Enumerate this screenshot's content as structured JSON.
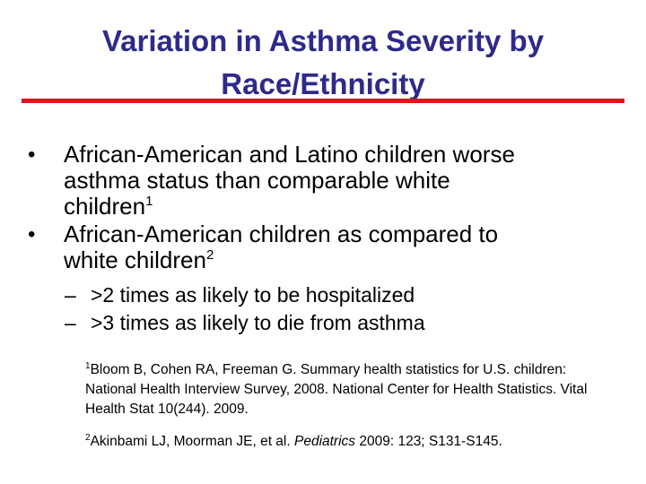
{
  "title": {
    "line1": "Variation in Asthma Severity by",
    "line2": "Race/Ethnicity"
  },
  "colors": {
    "title": "#2e2a8a",
    "rule": "#e0141b"
  },
  "bullets": [
    {
      "marker": "•",
      "lines": [
        "African-American and Latino children worse",
        "asthma status than comparable white",
        "children"
      ],
      "footnote": "1"
    },
    {
      "marker": "•",
      "lines": [
        "African-American children as compared to",
        "white children"
      ],
      "footnote": "2"
    }
  ],
  "sub_bullets": [
    {
      "marker": "–",
      "text": ">2 times as likely to be hospitalized"
    },
    {
      "marker": "–",
      "text": ">3 times as likely to die from asthma"
    }
  ],
  "references": [
    {
      "number": "1",
      "text": "Bloom B, Cohen RA, Freeman G. Summary health statistics for U.S. children: National Health Interview Survey, 2008. National Center for Health Statistics. Vital Health Stat 10(244). 2009."
    },
    {
      "number": "2",
      "text_before": "Akinbami LJ, Moorman JE, et al. ",
      "journal": "Pediatrics",
      "text_after": " 2009: 123; S131-S145."
    }
  ]
}
